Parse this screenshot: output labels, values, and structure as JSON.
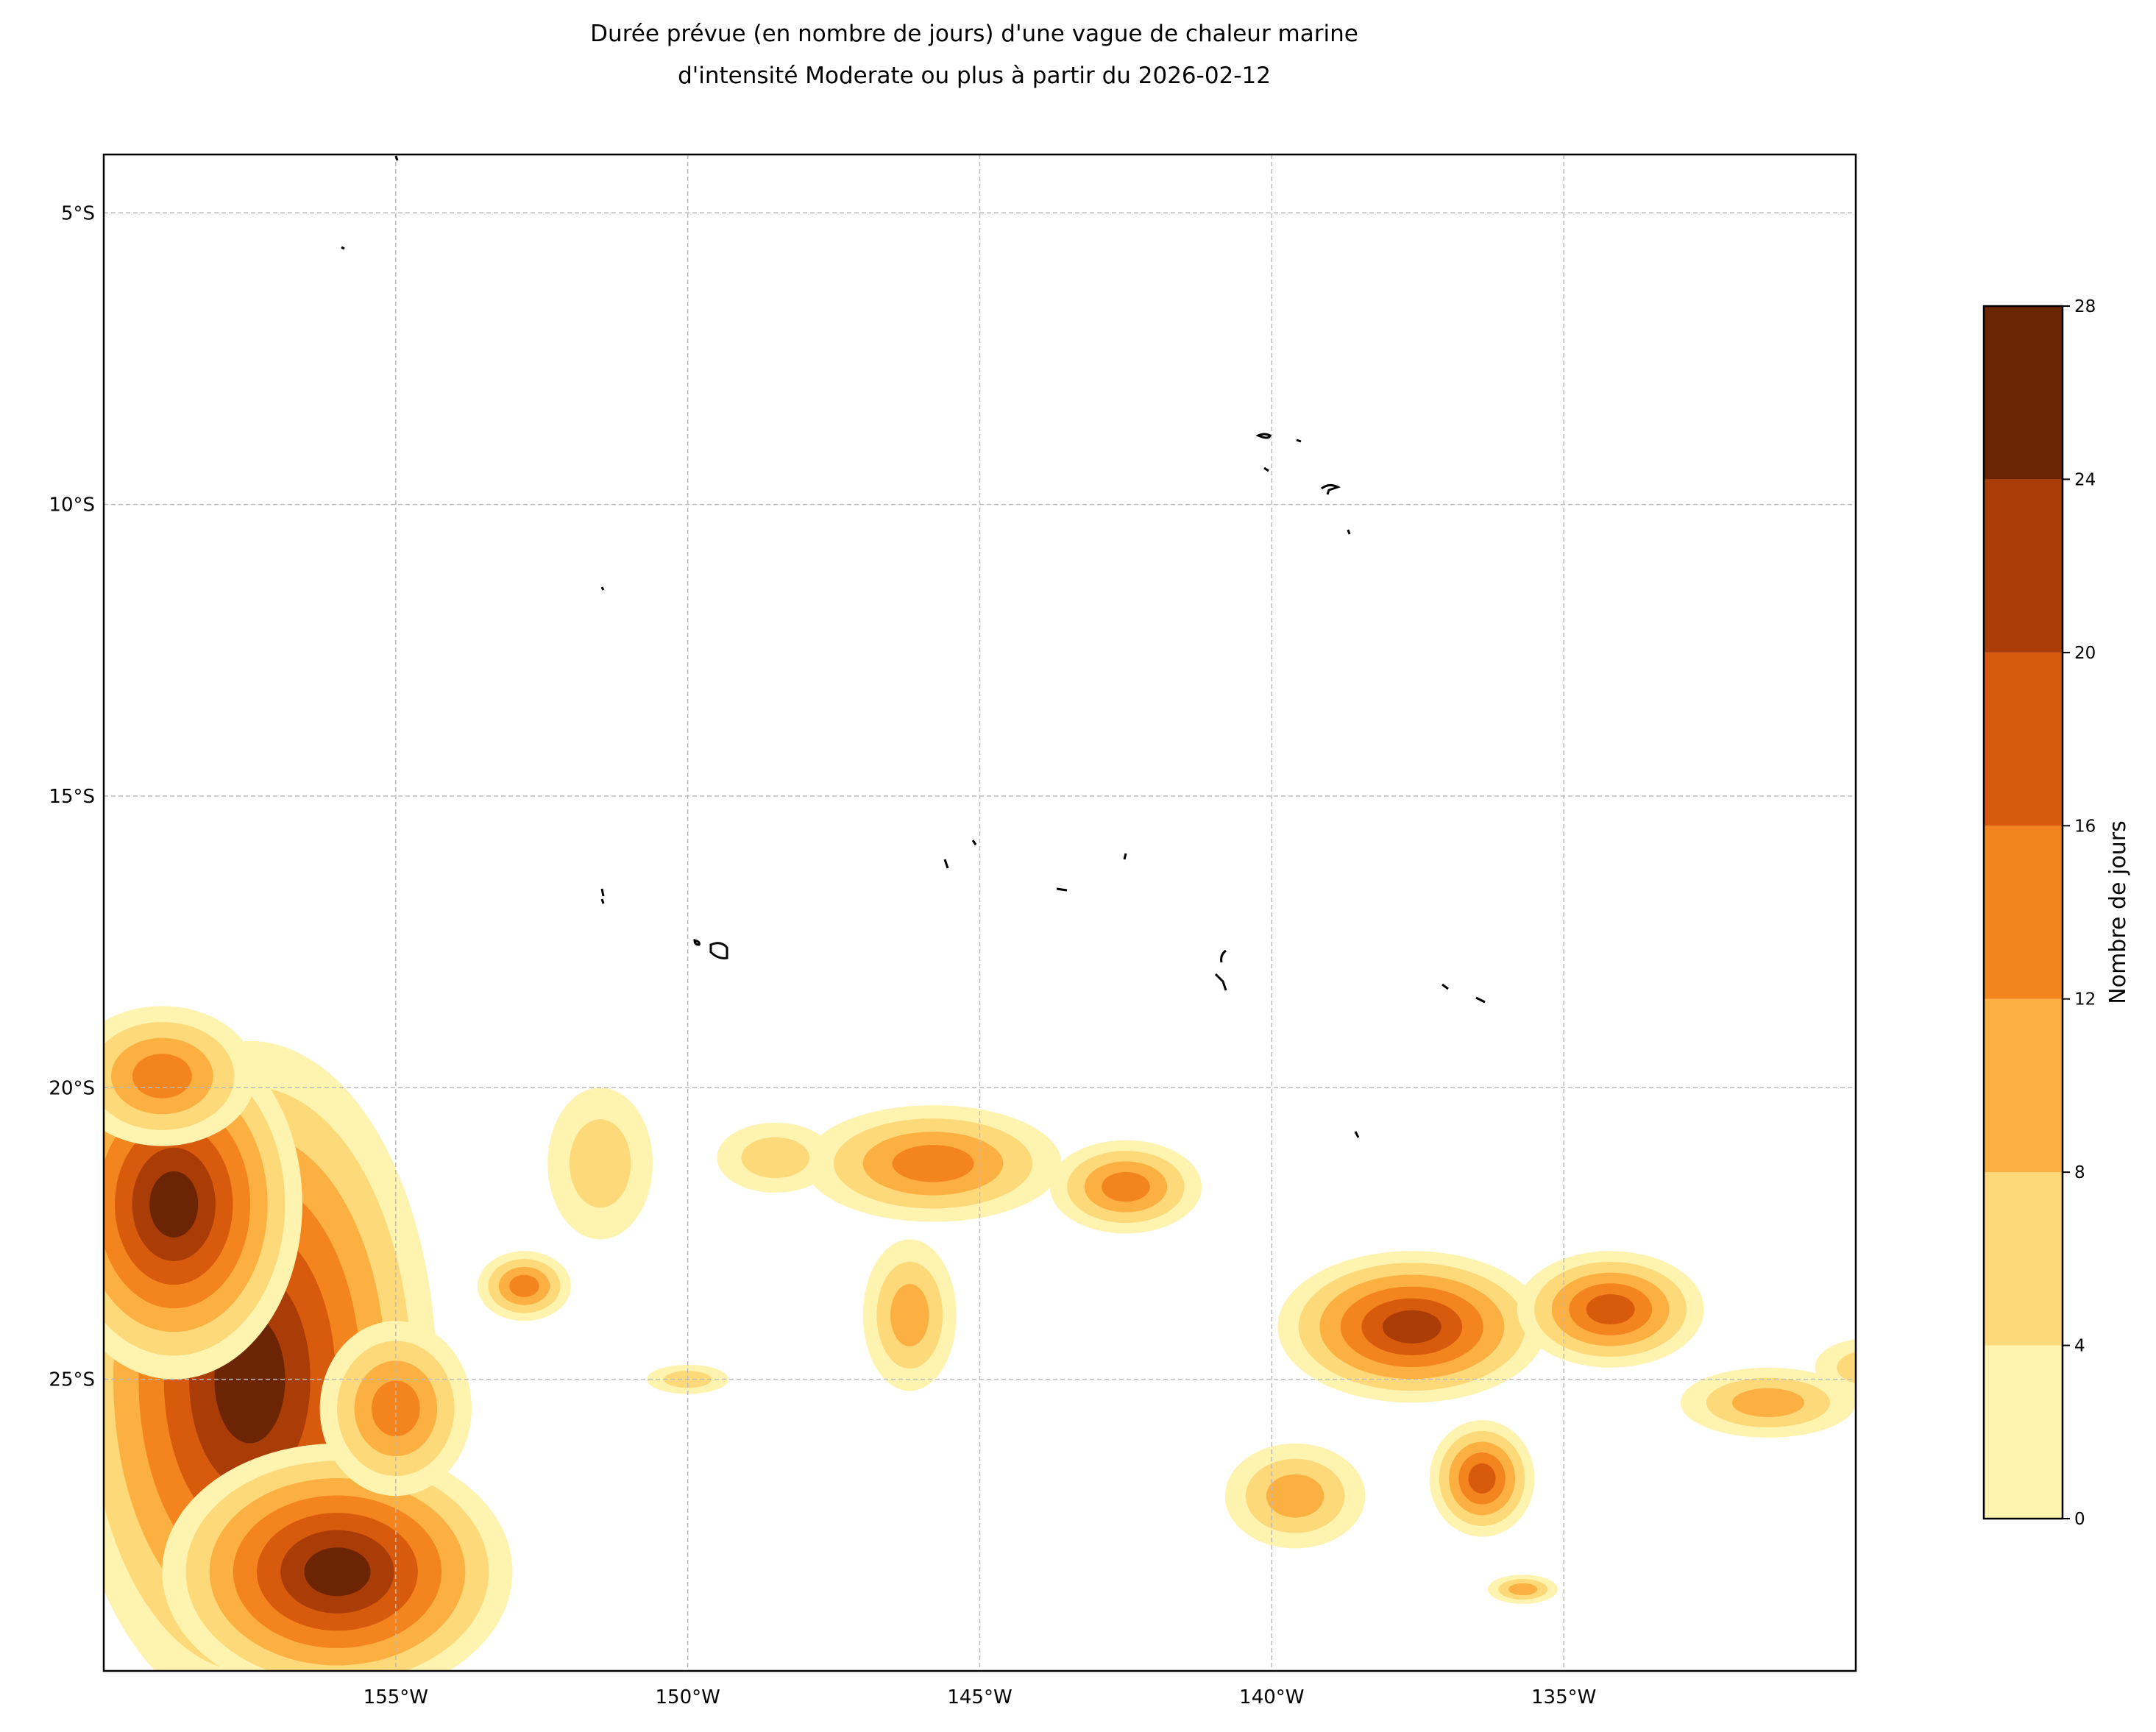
{
  "chart_data": {
    "type": "contour-map",
    "title": [
      "Durée prévue (en nombre de jours) d'une vague de chaleur marine",
      "d'intensité Moderate ou plus à partir du 2026-02-12"
    ],
    "xlim": [
      -160,
      -130
    ],
    "ylim": [
      -30,
      -4
    ],
    "xticks": [
      {
        "value": -155,
        "label": "155°W"
      },
      {
        "value": -150,
        "label": "150°W"
      },
      {
        "value": -145,
        "label": "145°W"
      },
      {
        "value": -140,
        "label": "140°W"
      },
      {
        "value": -135,
        "label": "135°W"
      }
    ],
    "yticks": [
      {
        "value": -5,
        "label": "5°S"
      },
      {
        "value": -10,
        "label": "10°S"
      },
      {
        "value": -15,
        "label": "15°S"
      },
      {
        "value": -20,
        "label": "20°S"
      },
      {
        "value": -25,
        "label": "25°S"
      }
    ],
    "grid": true,
    "colorbar": {
      "label": "Nombre de jours",
      "levels": [
        0,
        4,
        8,
        12,
        16,
        20,
        24,
        28
      ],
      "colors": [
        "#fff3b0",
        "#fdd97a",
        "#fdb042",
        "#f3841e",
        "#d85a0d",
        "#a93c07",
        "#6b2505"
      ]
    }
  }
}
